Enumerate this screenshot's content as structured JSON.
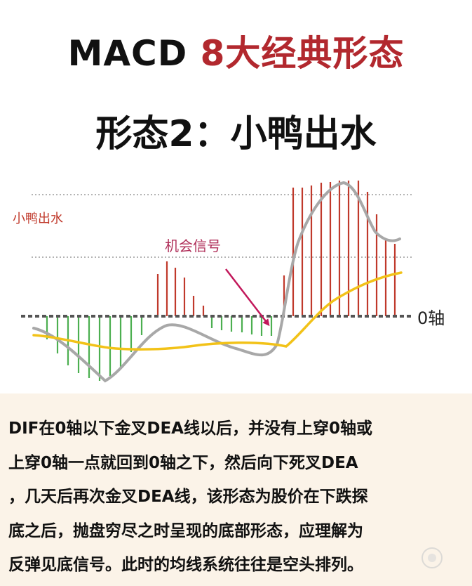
{
  "header": {
    "title_latin": "MACD",
    "title_cn": "8大经典形态",
    "subtitle": "形态2：小鸭出水"
  },
  "diagram": {
    "label_pattern": "小鸭出水",
    "label_signal": "机会信号",
    "label_zero_axis": "0轴",
    "colors": {
      "positive_bar": "#c0392b",
      "negative_bar": "#4caf50",
      "dif_line": "#a8a8a8",
      "dea_line": "#f2c218",
      "arrow": "#c2185b",
      "zero_axis": "#555555",
      "guide_line": "#888888"
    }
  },
  "description": {
    "lines": [
      "DIF在0轴以下金叉DEA线以后，并没有上穿0轴或",
      "上穿0轴一点就回到0轴之下，然后向下死叉DEA",
      "，几天后再次金叉DEA线，该形态为股价在下跌探",
      "底之后，抛盘穷尽之时呈现的底部形态，应理解为",
      "反弹见底信号。此时的均线系统往往是空头排列。"
    ]
  }
}
